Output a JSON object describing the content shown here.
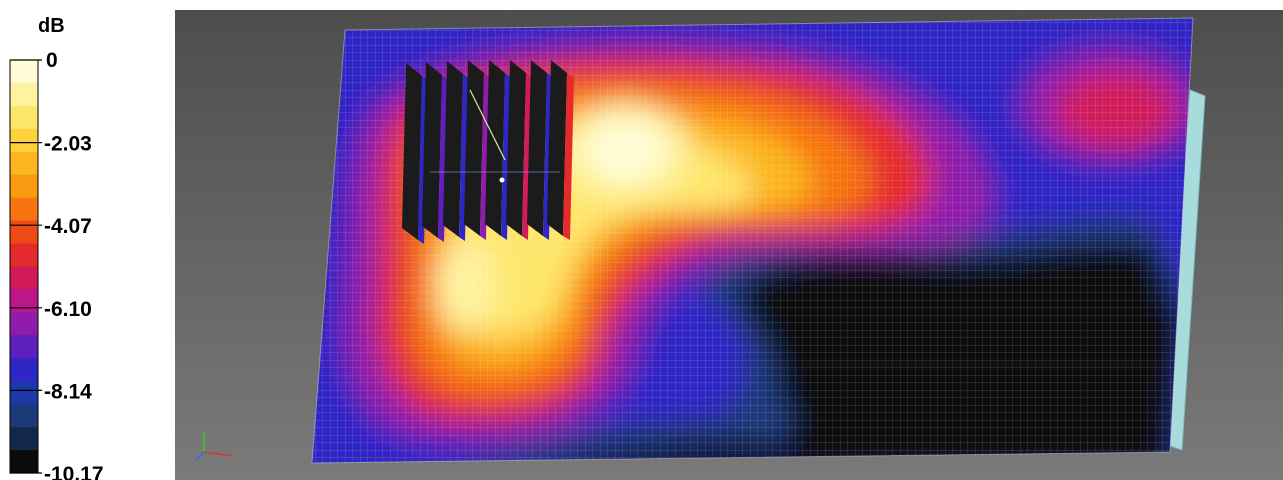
{
  "chart_data": {
    "type": "heatmap",
    "colorbar": {
      "unit": "dB",
      "tick_labels": [
        "0",
        "-2.03",
        "-4.07",
        "-6.10",
        "-8.14",
        "-10.17"
      ],
      "range": [
        -10.17,
        0
      ],
      "levels": [
        {
          "color": "#fffdd8"
        },
        {
          "color": "#fff3a0"
        },
        {
          "color": "#fee66a"
        },
        {
          "color": "#fdd23c"
        },
        {
          "color": "#fcb61e"
        },
        {
          "color": "#f99a12"
        },
        {
          "color": "#f6750e"
        },
        {
          "color": "#ee4a16"
        },
        {
          "color": "#e42a2c"
        },
        {
          "color": "#d11b5a"
        },
        {
          "color": "#b9178a"
        },
        {
          "color": "#8f1cab"
        },
        {
          "color": "#5e1fbe"
        },
        {
          "color": "#2f26c6"
        },
        {
          "color": "#1b3aa8"
        },
        {
          "color": "#1c3a7a"
        },
        {
          "color": "#14284c"
        },
        {
          "color": "#0a0a0a"
        }
      ]
    },
    "scene": {
      "background_top": "#4f4f4f",
      "background_bottom": "#777777",
      "mesh": "white grid",
      "wall_color": "#a8dcdc",
      "object": "array of 8 vertical panels"
    }
  }
}
